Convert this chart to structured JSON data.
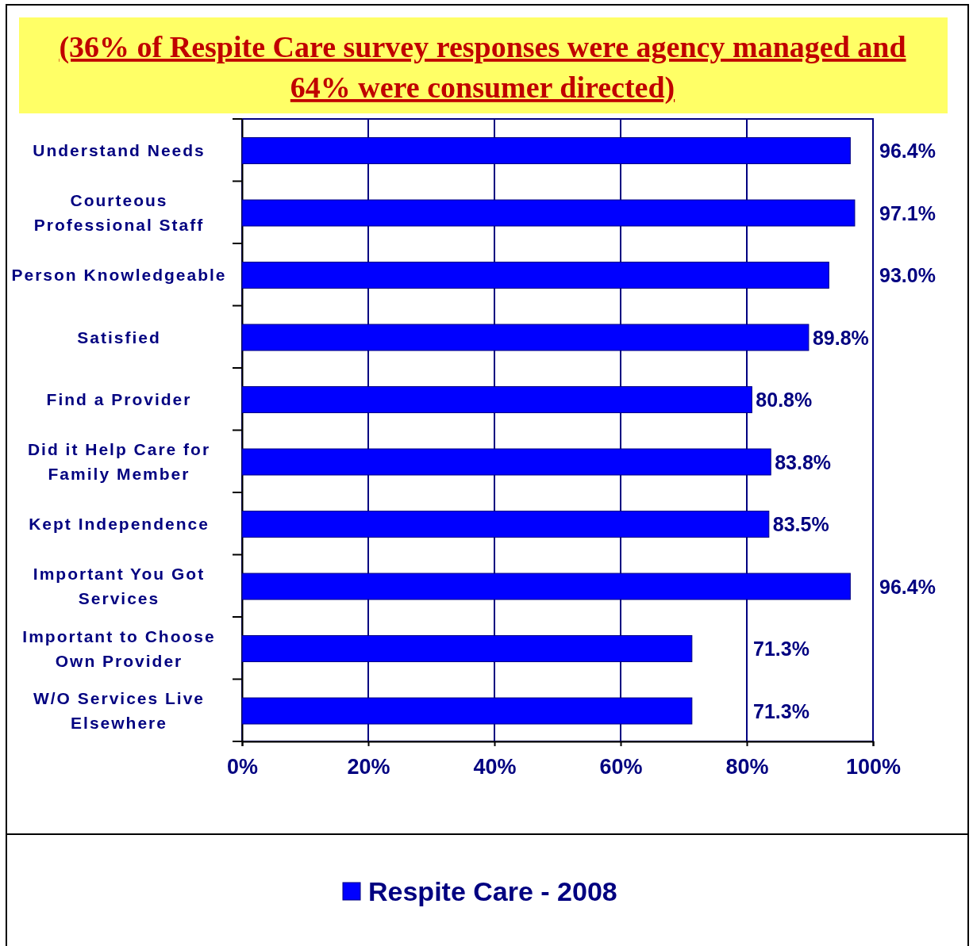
{
  "chart_data": {
    "type": "bar",
    "orientation": "horizontal",
    "title": "(36% of Respite Care survey responses were agency managed and 64% were consumer directed)",
    "categories": [
      "Understand Needs",
      "Courteous Professional Staff",
      "Person Knowledgeable",
      "Satisfied",
      "Find a Provider",
      "Did it Help Care for Family Member",
      "Kept Independence",
      "Important You Got Services",
      "Important to Choose Own Provider",
      "W/O Services Live Elsewhere"
    ],
    "series": [
      {
        "name": "Respite Care - 2008",
        "color": "#0000ff",
        "values": [
          96.4,
          97.1,
          93.0,
          89.8,
          80.8,
          83.8,
          83.5,
          96.4,
          71.3,
          71.3
        ],
        "value_labels": [
          "96.4%",
          "97.1%",
          "93.0%",
          "89.8%",
          "80.8%",
          "83.8%",
          "83.5%",
          "96.4%",
          "71.3%",
          "71.3%"
        ]
      }
    ],
    "xlim": [
      0,
      100
    ],
    "xticks": [
      {
        "value": 0,
        "label": "0%"
      },
      {
        "value": 20,
        "label": "20%"
      },
      {
        "value": 40,
        "label": "40%"
      },
      {
        "value": 60,
        "label": "60%"
      },
      {
        "value": 80,
        "label": "80%"
      },
      {
        "value": 100,
        "label": "100%"
      }
    ],
    "grid": "x",
    "legend": "bottom"
  }
}
